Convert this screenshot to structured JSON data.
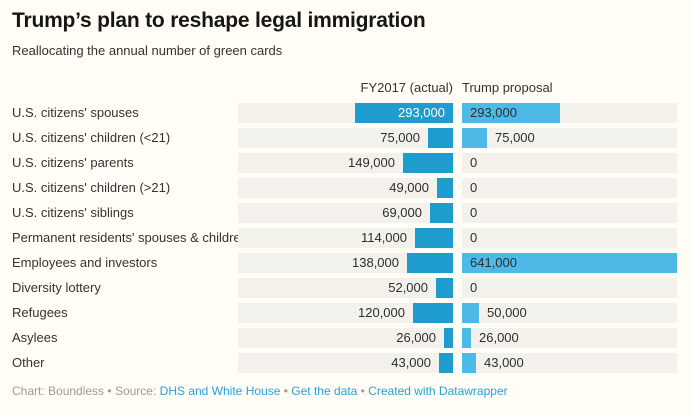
{
  "header": {
    "title": "Trump’s plan to reshape legal immigration",
    "subtitle": "Reallocating the annual number of green cards"
  },
  "columns": {
    "fy2017": "FY2017 (actual)",
    "trump": "Trump proposal"
  },
  "chart_data": {
    "type": "bar",
    "orientation": "horizontal",
    "categories": [
      "U.S. citizens' spouses",
      "U.S. citizens' children (<21)",
      "U.S. citizens' parents",
      "U.S. citizens' children (>21)",
      "U.S. citizens' siblings",
      "Permanent residents' spouses & children",
      "Employees and investors",
      "Diversity lottery",
      "Refugees",
      "Asylees",
      "Other"
    ],
    "series": [
      {
        "name": "FY2017 (actual)",
        "values": [
          293000,
          75000,
          149000,
          49000,
          69000,
          114000,
          138000,
          52000,
          120000,
          26000,
          43000
        ]
      },
      {
        "name": "Trump proposal",
        "values": [
          293000,
          75000,
          0,
          0,
          0,
          0,
          641000,
          0,
          50000,
          26000,
          43000
        ]
      }
    ],
    "xmax": 641000,
    "grid": false,
    "legend_position": "column-headers",
    "title": "Trump’s plan to reshape legal immigration",
    "subtitle": "Reallocating the annual number of green cards"
  },
  "colors": {
    "background": "#fffdf5",
    "track": "#f2f1ec",
    "fy2017_bar": "#1e9ccd",
    "trump_bar": "#4db9e7",
    "inside_label_fy": "#ffffff",
    "text": "#333333",
    "footer_gray": "#9a9a9a",
    "link_blue": "#2aa0d8"
  },
  "footer": {
    "credit": "Chart: Boundless",
    "sep": "•",
    "source_label": "Source:",
    "source_link": "DHS and White House",
    "get_data": "Get the data",
    "created": "Created with Datawrapper"
  }
}
